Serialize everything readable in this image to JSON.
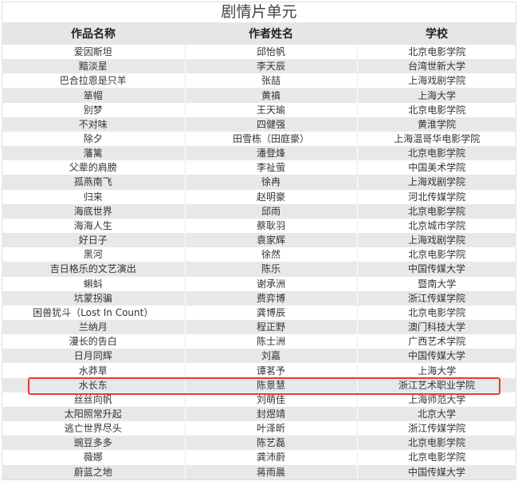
{
  "title": "剧情片单元",
  "columns": [
    "作品名称",
    "作者姓名",
    "学校"
  ],
  "highlight_color": "#e53935",
  "highlighted_row": "水长东",
  "rows": [
    [
      "爱因斯坦",
      "邱怡帆",
      "北京电影学院"
    ],
    [
      "黯淡星",
      "李天辰",
      "台湾世新大学"
    ],
    [
      "巴合拉恩是只羊",
      "张喆",
      "上海戏剧学院"
    ],
    [
      "箪帽",
      "黄禛",
      "上海大学"
    ],
    [
      "别梦",
      "王天瑜",
      "北京电影学院"
    ],
    [
      "不对味",
      "四健强",
      "黄淮学院"
    ],
    [
      "除夕",
      "田雪栋（田庭豪）",
      "上海温哥华电影学院"
    ],
    [
      "藩篱",
      "潘登烽",
      "北京电影学院"
    ],
    [
      "父辈的肩膀",
      "李祉萤",
      "中国美术学院"
    ],
    [
      "孤燕南飞",
      "徐冉",
      "上海戏剧学院"
    ],
    [
      "归来",
      "赵明豪",
      "河北传媒学院"
    ],
    [
      "海底世界",
      "邱雨",
      "北京电影学院"
    ],
    [
      "海海人生",
      "蔡耿羽",
      "北京城市学院"
    ],
    [
      "好日子",
      "袁家辉",
      "上海戏剧学院"
    ],
    [
      "黑河",
      "徐然",
      "北京电影学院"
    ],
    [
      "吉日格乐的文艺演出",
      "陈乐",
      "中国传媒大学"
    ],
    [
      "蝌蚪",
      "谢承洲",
      "暨南大学"
    ],
    [
      "坑蒙拐骗",
      "费弈博",
      "浙江传媒学院"
    ],
    [
      "困兽犹斗（Lost In Count）",
      "龚博辰",
      "北京电影学院"
    ],
    [
      "兰纳月",
      "程正野",
      "澳门科技大学"
    ],
    [
      "漫长的告白",
      "陈士洲",
      "广西艺术学院"
    ],
    [
      "日月同辉",
      "刘嘉",
      "中国传媒大学"
    ],
    [
      "水莽草",
      "谭茗予",
      "上海大学"
    ],
    [
      "水长东",
      "陈景慧",
      "浙江艺术职业学院"
    ],
    [
      "丝丝向帆",
      "刘萌佳",
      "上海师范大学"
    ],
    [
      "太阳照常升起",
      "封煜靖",
      "北京大学"
    ],
    [
      "逃亡世界尽头",
      "叶泽昕",
      "浙江传媒学院"
    ],
    [
      "豌豆多多",
      "陈艺磊",
      "北京电影学院"
    ],
    [
      "薇娜",
      "龚沛蔚",
      "北京电影学院"
    ],
    [
      "蔚蓝之地",
      "蒋雨晨",
      "中国传媒大学"
    ]
  ]
}
